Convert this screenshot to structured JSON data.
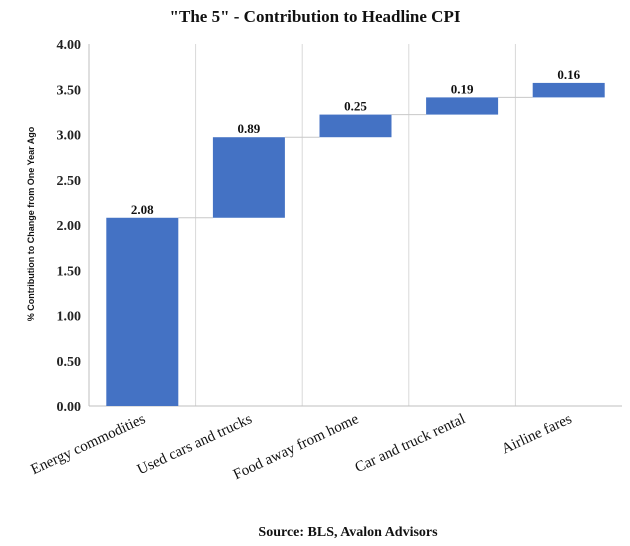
{
  "chart_data": {
    "type": "bar",
    "subtype": "waterfall",
    "title": "\"The  5\" - Contribution to Headline CPI",
    "ylabel": "% Contribution to Change from One Year Ago",
    "xlabel": "",
    "source": "Source: BLS, Avalon Advisors",
    "categories": [
      "Energy commodities",
      "Used cars and trucks",
      "Food away from home",
      "Car and truck rental",
      "Airline fares"
    ],
    "values": [
      2.08,
      0.89,
      0.25,
      0.19,
      0.16
    ],
    "data_labels": [
      "2.08",
      "0.89",
      "0.25",
      "0.19",
      "0.16"
    ],
    "ylim": [
      0,
      4
    ],
    "yticks": [
      "0.00",
      "0.50",
      "1.00",
      "1.50",
      "2.00",
      "2.50",
      "3.00",
      "3.50",
      "4.00"
    ],
    "bar_color": "#4472C4",
    "grid": "vertical",
    "legend": "none"
  }
}
